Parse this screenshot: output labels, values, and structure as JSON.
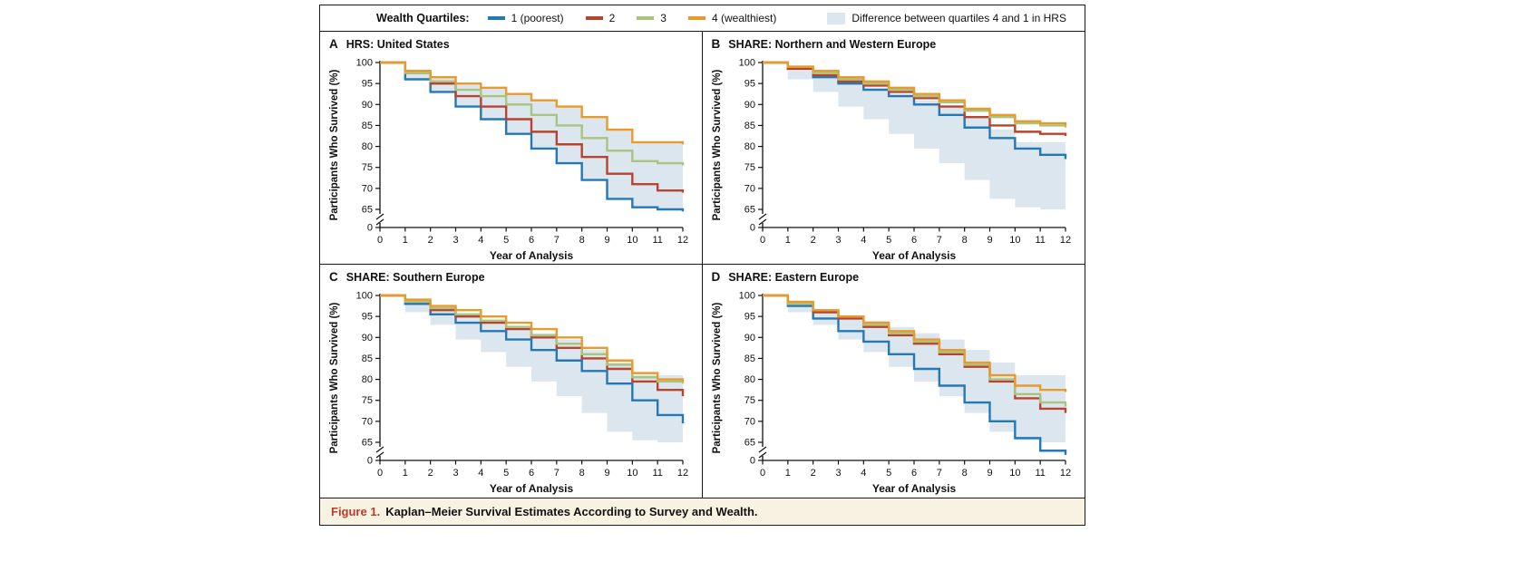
{
  "legend": {
    "title": "Wealth Quartiles:",
    "items": [
      {
        "label": "1 (poorest)",
        "color": "#2478b4"
      },
      {
        "label": "2",
        "color": "#b8432f"
      },
      {
        "label": "3",
        "color": "#a9c47f"
      },
      {
        "label": "4 (wealthiest)",
        "color": "#e99a2d"
      }
    ],
    "band": {
      "label": "Difference between quartiles 4 and 1 in HRS",
      "color": "#dce6ef"
    }
  },
  "axes": {
    "ylabel": "Participants Who Survived (%)",
    "xlabel": "Year of Analysis",
    "yticks": [
      100,
      95,
      90,
      85,
      80,
      75,
      70,
      65
    ],
    "y_zero_label": "0",
    "y_break": true,
    "ylim_main": [
      65,
      100
    ],
    "xticks": [
      0,
      1,
      2,
      3,
      4,
      5,
      6,
      7,
      8,
      9,
      10,
      11,
      12
    ]
  },
  "hrs_difference_band": {
    "label": "Difference between quartiles 4 and 1 in HRS",
    "color": "#dce6ef",
    "upper_quartile4": [
      100,
      98,
      96.5,
      95,
      94,
      92.5,
      91,
      89.5,
      87,
      84,
      81,
      81,
      80.5
    ],
    "lower_quartile1": [
      100,
      96,
      93,
      89.5,
      86.5,
      83,
      79.5,
      76,
      72,
      67.5,
      65.5,
      65,
      64.5
    ]
  },
  "chart_data": [
    {
      "type": "line",
      "subtype": "kaplan-meier-step",
      "panel": "A",
      "title": "HRS: United States",
      "x": [
        0,
        1,
        2,
        3,
        4,
        5,
        6,
        7,
        8,
        9,
        10,
        11,
        12
      ],
      "series": [
        {
          "key": "q1",
          "name": "1 (poorest)",
          "color": "#2478b4",
          "values": [
            100,
            96,
            93,
            89.5,
            86.5,
            83,
            79.5,
            76,
            72,
            67.5,
            65.5,
            65,
            64.5
          ]
        },
        {
          "key": "q2",
          "name": "2",
          "color": "#b8432f",
          "values": [
            100,
            97.5,
            95,
            92,
            89.5,
            86.5,
            83.5,
            80.5,
            77.5,
            73.5,
            71,
            69.5,
            69
          ]
        },
        {
          "key": "q3",
          "name": "3",
          "color": "#a9c47f",
          "values": [
            100,
            97.5,
            95.5,
            93.5,
            92,
            90,
            87.5,
            85,
            82,
            79,
            76.5,
            76,
            75.5
          ]
        },
        {
          "key": "q4",
          "name": "4 (wealthiest)",
          "color": "#e99a2d",
          "values": [
            100,
            98,
            96.5,
            95,
            94,
            92.5,
            91,
            89.5,
            87,
            84,
            81,
            81,
            80.5
          ]
        }
      ]
    },
    {
      "type": "line",
      "subtype": "kaplan-meier-step",
      "panel": "B",
      "title": "SHARE: Northern and Western Europe",
      "x": [
        0,
        1,
        2,
        3,
        4,
        5,
        6,
        7,
        8,
        9,
        10,
        11,
        12
      ],
      "series": [
        {
          "key": "q1",
          "name": "1 (poorest)",
          "color": "#2478b4",
          "values": [
            100,
            98.5,
            96.5,
            95,
            93.5,
            92,
            90,
            87.5,
            84.5,
            82,
            79.5,
            78,
            77
          ]
        },
        {
          "key": "q2",
          "name": "2",
          "color": "#b8432f",
          "values": [
            100,
            98.5,
            97,
            95.5,
            94.5,
            93,
            91.5,
            89.5,
            87,
            85,
            83.5,
            83,
            82.5
          ]
        },
        {
          "key": "q3",
          "name": "3",
          "color": "#a9c47f",
          "values": [
            100,
            99,
            97.5,
            96,
            95,
            93.5,
            92,
            90.5,
            88.5,
            87,
            85.5,
            85,
            84.5
          ]
        },
        {
          "key": "q4",
          "name": "4 (wealthiest)",
          "color": "#e99a2d",
          "values": [
            100,
            99,
            98,
            96.5,
            95.5,
            94,
            92.5,
            91,
            89,
            87.5,
            86,
            85.5,
            85
          ]
        }
      ]
    },
    {
      "type": "line",
      "subtype": "kaplan-meier-step",
      "panel": "C",
      "title": "SHARE: Southern Europe",
      "x": [
        0,
        1,
        2,
        3,
        4,
        5,
        6,
        7,
        8,
        9,
        10,
        11,
        12
      ],
      "series": [
        {
          "key": "q1",
          "name": "1 (poorest)",
          "color": "#2478b4",
          "values": [
            100,
            98,
            95.5,
            93.5,
            91.5,
            89.5,
            87,
            84.5,
            82,
            79,
            75,
            71.5,
            69.5
          ]
        },
        {
          "key": "q2",
          "name": "2",
          "color": "#b8432f",
          "values": [
            100,
            98.5,
            96.5,
            95,
            93.5,
            92,
            90,
            87.5,
            85,
            82.5,
            79.5,
            77.5,
            76
          ]
        },
        {
          "key": "q3",
          "name": "3",
          "color": "#a9c47f",
          "values": [
            100,
            98.5,
            97,
            95.5,
            94,
            92.5,
            90.5,
            88.5,
            86,
            83.5,
            80.5,
            79.5,
            79
          ]
        },
        {
          "key": "q4",
          "name": "4 (wealthiest)",
          "color": "#e99a2d",
          "values": [
            100,
            99,
            97.5,
            96.5,
            95,
            93.5,
            92,
            90,
            87.5,
            84.5,
            81.5,
            80,
            79.5
          ]
        }
      ]
    },
    {
      "type": "line",
      "subtype": "kaplan-meier-step",
      "panel": "D",
      "title": "SHARE: Eastern Europe",
      "x": [
        0,
        1,
        2,
        3,
        4,
        5,
        6,
        7,
        8,
        9,
        10,
        11,
        12
      ],
      "series": [
        {
          "key": "q1",
          "name": "1 (poorest)",
          "color": "#2478b4",
          "values": [
            100,
            97.5,
            94.5,
            91.5,
            89,
            86,
            82.5,
            78.5,
            74.5,
            70,
            66,
            63,
            62
          ]
        },
        {
          "key": "q2",
          "name": "2",
          "color": "#b8432f",
          "values": [
            100,
            98,
            96,
            94.5,
            92.5,
            90.5,
            88.5,
            86,
            83,
            79.5,
            75.5,
            73,
            72
          ]
        },
        {
          "key": "q3",
          "name": "3",
          "color": "#a9c47f",
          "values": [
            100,
            98,
            96.5,
            95,
            93,
            91,
            89,
            86.5,
            83.5,
            80,
            76.5,
            74.5,
            73.5
          ]
        },
        {
          "key": "q4",
          "name": "4 (wealthiest)",
          "color": "#e99a2d",
          "values": [
            100,
            98.5,
            96.5,
            95,
            93.5,
            91.5,
            89.5,
            87,
            84,
            81,
            78.5,
            77.5,
            77
          ]
        }
      ]
    }
  ],
  "caption": {
    "label": "Figure 1.",
    "title": "Kaplan–Meier Survival Estimates According to Survey and Wealth.",
    "accent_color": "#c03928"
  }
}
